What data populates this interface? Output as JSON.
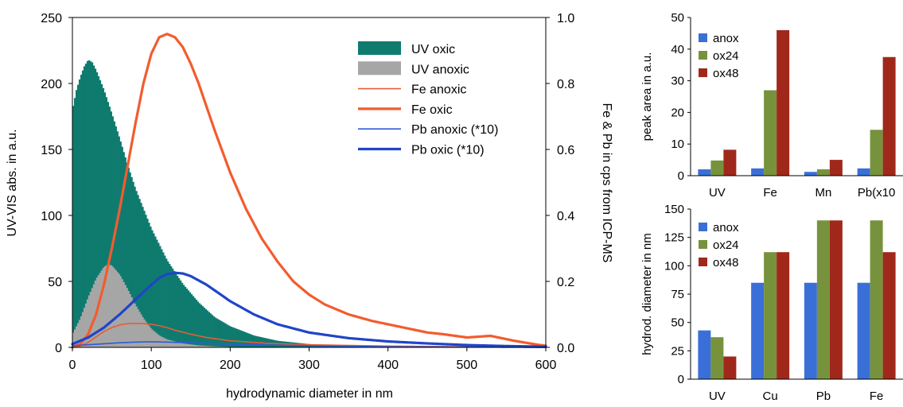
{
  "chart_data": [
    {
      "type": "area",
      "xlabel": "hydrodynamic diameter in nm",
      "ylabel": "UV-VIS abs. in a.u.",
      "y2label": "Fe & Pb in cps from ICP-MS",
      "xlim": [
        0,
        600
      ],
      "ylim": [
        0,
        250
      ],
      "y2lim": [
        0,
        1.0
      ],
      "xticks": [
        "0",
        "100",
        "200",
        "300",
        "400",
        "500",
        "600"
      ],
      "yticks": [
        "0",
        "50",
        "100",
        "150",
        "200",
        "250"
      ],
      "y2ticks": [
        "0.0",
        "0.2",
        "0.4",
        "0.6",
        "0.8",
        "1.0"
      ],
      "legend_position": "top-right",
      "series": [
        {
          "name": "UV oxic",
          "kind": "filled-bars",
          "axis": "left",
          "color": "#0f7b6f",
          "x": [
            0,
            5,
            10,
            15,
            20,
            25,
            30,
            40,
            50,
            60,
            70,
            80,
            100,
            120,
            140,
            160,
            180,
            200,
            230,
            260,
            300,
            350,
            400,
            600
          ],
          "y": [
            180,
            195,
            205,
            213,
            218,
            216,
            210,
            195,
            177,
            158,
            138,
            120,
            90,
            66,
            48,
            34,
            23,
            16,
            9,
            5,
            2.5,
            1,
            0.5,
            0
          ]
        },
        {
          "name": "UV anoxic",
          "kind": "filled-bars",
          "axis": "left",
          "color": "#a6a6a6",
          "x": [
            0,
            10,
            20,
            30,
            40,
            45,
            50,
            60,
            70,
            80,
            90,
            100,
            110,
            120,
            140,
            160,
            180,
            200,
            250,
            600
          ],
          "y": [
            10,
            22,
            38,
            52,
            61,
            63,
            62,
            55,
            44,
            32,
            22,
            14,
            9,
            6,
            3,
            1.5,
            0.8,
            0.4,
            0,
            0
          ]
        },
        {
          "name": "Fe anoxic",
          "kind": "line",
          "axis": "right",
          "color": "#e85c36",
          "width": 1.6,
          "x": [
            0,
            10,
            20,
            30,
            40,
            50,
            60,
            70,
            80,
            90,
            100,
            110,
            120,
            130,
            150,
            170,
            200,
            250,
            300,
            400,
            500,
            600
          ],
          "y": [
            0.0,
            0.004,
            0.015,
            0.032,
            0.048,
            0.06,
            0.068,
            0.072,
            0.073,
            0.072,
            0.07,
            0.066,
            0.06,
            0.052,
            0.04,
            0.03,
            0.02,
            0.012,
            0.008,
            0.004,
            0.002,
            0.0
          ]
        },
        {
          "name": "Fe oxic",
          "kind": "line",
          "axis": "right",
          "color": "#f25c2e",
          "width": 3.2,
          "x": [
            0,
            10,
            20,
            30,
            40,
            50,
            60,
            70,
            80,
            90,
            100,
            110,
            120,
            130,
            140,
            150,
            160,
            170,
            180,
            200,
            220,
            240,
            260,
            280,
            300,
            320,
            350,
            380,
            400,
            420,
            450,
            470,
            500,
            530,
            560,
            590,
            600
          ],
          "y": [
            0.0,
            0.01,
            0.04,
            0.1,
            0.19,
            0.3,
            0.42,
            0.55,
            0.68,
            0.8,
            0.89,
            0.94,
            0.95,
            0.94,
            0.91,
            0.86,
            0.8,
            0.73,
            0.66,
            0.53,
            0.42,
            0.33,
            0.26,
            0.2,
            0.16,
            0.13,
            0.1,
            0.08,
            0.07,
            0.06,
            0.045,
            0.04,
            0.03,
            0.035,
            0.02,
            0.008,
            0.005
          ]
        },
        {
          "name": "Pb anoxic (*10)",
          "kind": "line",
          "axis": "right",
          "color": "#2f5bd6",
          "width": 1.6,
          "x": [
            0,
            20,
            40,
            60,
            80,
            100,
            120,
            150,
            200,
            300,
            400,
            500,
            600
          ],
          "y": [
            0.005,
            0.008,
            0.011,
            0.014,
            0.016,
            0.017,
            0.016,
            0.014,
            0.01,
            0.005,
            0.002,
            0.001,
            0.0
          ]
        },
        {
          "name": "Pb oxic (*10)",
          "kind": "line",
          "axis": "right",
          "color": "#1f45c8",
          "width": 3.2,
          "x": [
            0,
            20,
            40,
            60,
            80,
            100,
            110,
            120,
            130,
            140,
            150,
            170,
            200,
            230,
            260,
            300,
            350,
            400,
            450,
            500,
            550,
            600
          ],
          "y": [
            0.01,
            0.03,
            0.06,
            0.1,
            0.145,
            0.19,
            0.21,
            0.222,
            0.226,
            0.224,
            0.216,
            0.19,
            0.14,
            0.1,
            0.07,
            0.045,
            0.028,
            0.018,
            0.012,
            0.007,
            0.004,
            0.002
          ]
        }
      ]
    },
    {
      "type": "bar",
      "ylabel": "peak area in a.u.",
      "ylim": [
        0,
        50
      ],
      "yticks": [
        "0",
        "10",
        "20",
        "30",
        "40",
        "50"
      ],
      "categories": [
        "UV",
        "Fe",
        "Mn",
        "Pb(x10"
      ],
      "legend_position": "top-left",
      "series": [
        {
          "name": "anox",
          "color": "#3a6fd8",
          "values": [
            2,
            2.3,
            1.2,
            2.3
          ]
        },
        {
          "name": "ox24",
          "color": "#77923c",
          "values": [
            4.8,
            27,
            2,
            14.5
          ]
        },
        {
          "name": "ox48",
          "color": "#a0281b",
          "values": [
            8.2,
            46,
            5,
            37.5
          ]
        }
      ]
    },
    {
      "type": "bar",
      "ylabel": "hydrod. diameter in nm",
      "ylim": [
        0,
        150
      ],
      "yticks": [
        "0",
        "25",
        "50",
        "75",
        "100",
        "125",
        "150"
      ],
      "categories": [
        "UV",
        "Cu",
        "Pb",
        "Fe"
      ],
      "legend_position": "top-left",
      "series": [
        {
          "name": "anox",
          "color": "#3a6fd8",
          "values": [
            43,
            85,
            85,
            85
          ]
        },
        {
          "name": "ox24",
          "color": "#77923c",
          "values": [
            37,
            112,
            140,
            140
          ]
        },
        {
          "name": "ox48",
          "color": "#a0281b",
          "values": [
            20,
            112,
            140,
            112
          ]
        }
      ]
    }
  ]
}
